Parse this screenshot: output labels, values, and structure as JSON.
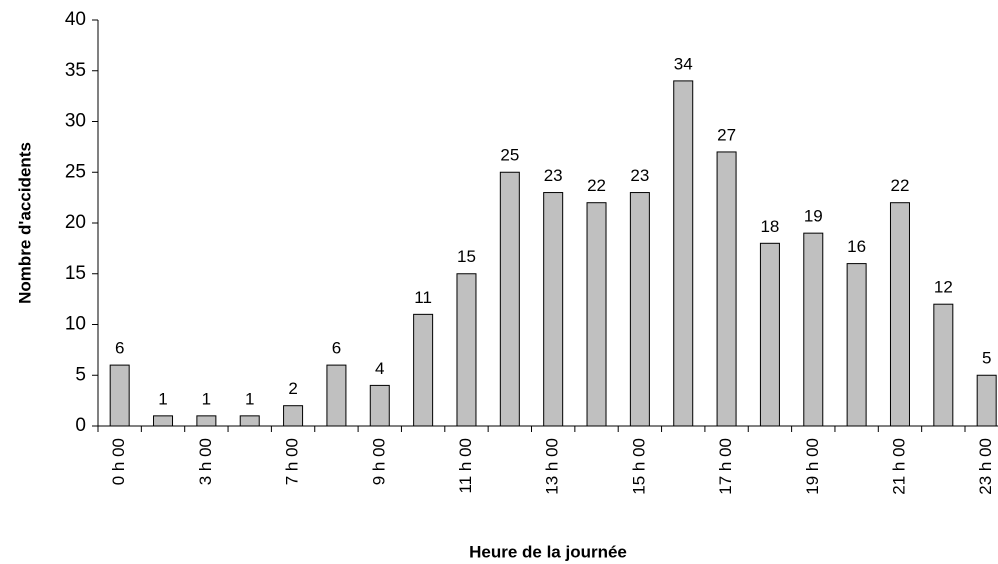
{
  "chart_data": {
    "type": "bar",
    "xlabel": "Heure de la journée",
    "ylabel": "Nombre d'accidents",
    "categories": [
      "0 h 00",
      null,
      "3 h 00",
      null,
      "7 h 00",
      null,
      "9 h 00",
      null,
      "11 h 00",
      null,
      "13 h 00",
      null,
      "15 h 00",
      null,
      "17 h 00",
      null,
      "19 h 00",
      null,
      "21 h 00",
      null,
      "23 h 00"
    ],
    "values": [
      6,
      1,
      1,
      1,
      2,
      6,
      4,
      11,
      15,
      25,
      23,
      22,
      23,
      34,
      27,
      18,
      19,
      16,
      22,
      12,
      5
    ],
    "color": "#c0c0c0",
    "ylim": [
      0,
      40
    ],
    "yticks": [
      0,
      5,
      10,
      15,
      20,
      25,
      30,
      35,
      40
    ],
    "grid": false
  }
}
